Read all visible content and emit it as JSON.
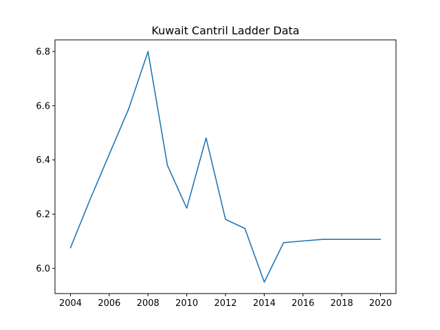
{
  "chart_data": {
    "type": "line",
    "title": "Kuwait Cantril Ladder Data",
    "xlabel": "",
    "ylabel": "",
    "x": [
      2004,
      2005,
      2006,
      2007,
      2008,
      2009,
      2010,
      2011,
      2012,
      2013,
      2014,
      2015,
      2016,
      2017,
      2018,
      2019,
      2020
    ],
    "series": [
      {
        "values": [
          6.076,
          6.252,
          6.421,
          6.588,
          6.8,
          6.38,
          6.222,
          6.481,
          6.181,
          6.147,
          5.949,
          6.095,
          6.101,
          6.107,
          6.107,
          6.107,
          6.107
        ],
        "color": "#1f77b4"
      }
    ],
    "xlim": [
      2003.2,
      2020.8
    ],
    "ylim": [
      5.907,
      6.843
    ],
    "xticks": [
      2004,
      2006,
      2008,
      2010,
      2012,
      2014,
      2016,
      2018,
      2020
    ],
    "yticks": [
      6.0,
      6.2,
      6.4,
      6.6,
      6.8
    ],
    "ytick_labels": [
      "6.0",
      "6.2",
      "6.4",
      "6.6",
      "6.8"
    ],
    "grid": false,
    "legend": false
  }
}
